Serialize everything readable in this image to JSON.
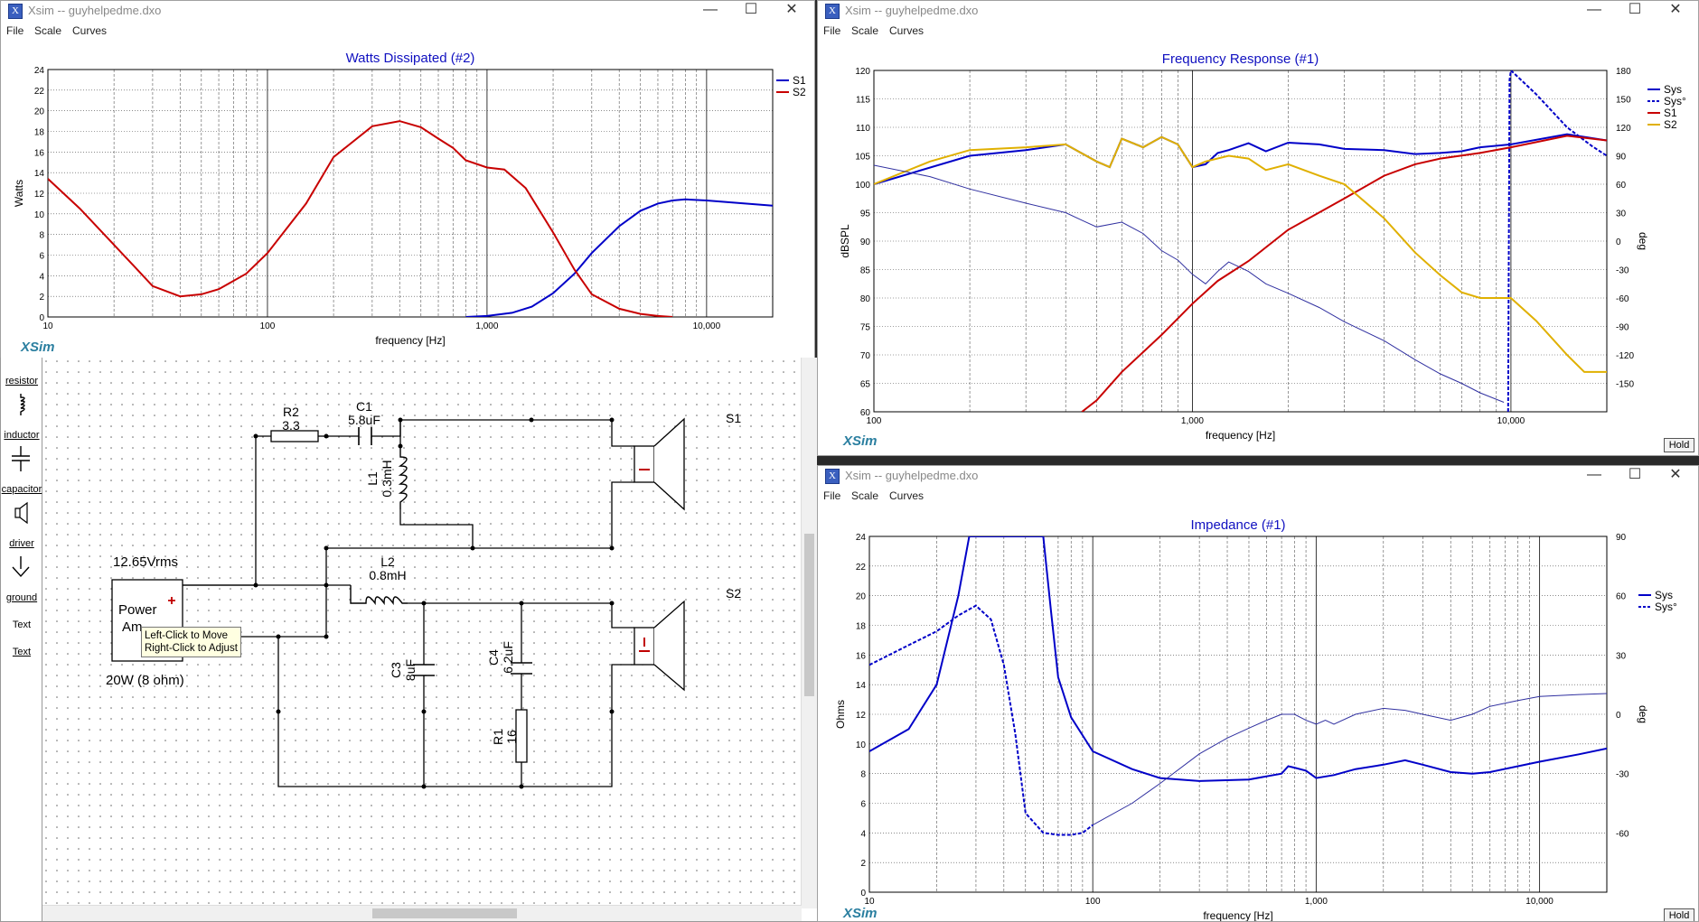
{
  "windows": {
    "watts": {
      "title": "Xsim -- guyhelpedme.dxo",
      "menu": [
        "File",
        "Scale",
        "Curves"
      ],
      "chart_title": "Watts Dissipated (#2)",
      "ylabel": "Watts",
      "xlabel": "frequency [Hz]",
      "logo": "XSim",
      "legend": [
        "S1",
        "S2"
      ]
    },
    "freq": {
      "title": "Xsim -- guyhelpedme.dxo",
      "menu": [
        "File",
        "Scale",
        "Curves"
      ],
      "chart_title": "Frequency Response (#1)",
      "ylabel": "dBSPL",
      "y2label": "deg",
      "xlabel": "frequency [Hz]",
      "logo": "XSim",
      "hold": "Hold",
      "legend": [
        "Sys",
        "Sys°",
        "S1",
        "S2"
      ]
    },
    "imp": {
      "title": "Xsim -- guyhelpedme.dxo",
      "menu": [
        "File",
        "Scale",
        "Curves"
      ],
      "chart_title": "Impedance (#1)",
      "ylabel": "Ohms",
      "y2label": "deg",
      "xlabel": "frequency [Hz]",
      "logo": "XSim",
      "hold": "Hold",
      "legend": [
        "Sys",
        "Sys°"
      ]
    }
  },
  "palette": [
    "resistor",
    "inductor",
    "capacitor",
    "driver",
    "ground",
    "Text",
    "Text"
  ],
  "schematic": {
    "R2_name": "R2",
    "R2_value": "3.3",
    "C1_name": "C1",
    "C1_value": "5.8uF",
    "L1_name": "L1",
    "L1_value": "0.3mH",
    "L2_name": "L2",
    "L2_value": "0.8mH",
    "C3_name": "C3",
    "C3_value": "8uF",
    "C4_name": "C4",
    "C4_value": "6.2uF",
    "R1_name": "R1",
    "R1_value": "16",
    "S1": "S1",
    "S2": "S2",
    "source_voltage": "12.65Vrms",
    "source_label_1": "Power",
    "source_label_2": "Am",
    "source_power": "20W (8 ohm)",
    "tooltip_line1": "Left-Click to Move",
    "tooltip_line2": "Right-Click to Adjust"
  },
  "chart_data": [
    {
      "type": "line",
      "title": "Watts Dissipated (#2)",
      "xlabel": "frequency [Hz]",
      "ylabel": "Watts",
      "xscale": "log",
      "xlim": [
        10,
        20000
      ],
      "ylim": [
        0,
        24
      ],
      "x_ticks": [
        "10",
        "100",
        "1,000",
        "10,000"
      ],
      "y_ticks": [
        0,
        2,
        4,
        6,
        8,
        10,
        12,
        14,
        16,
        18,
        20,
        22,
        24
      ],
      "legend_position": "right",
      "series": [
        {
          "name": "S1",
          "color": "#0000c8",
          "x": [
            800,
            1000,
            1300,
            1600,
            2000,
            2500,
            3000,
            4000,
            5000,
            6000,
            7000,
            8000,
            10000,
            15000,
            20000
          ],
          "y": [
            0,
            0.1,
            0.4,
            1.0,
            2.3,
            4.2,
            6.2,
            8.8,
            10.3,
            11.0,
            11.3,
            11.4,
            11.3,
            11.0,
            10.8
          ]
        },
        {
          "name": "S2",
          "color": "#c80000",
          "x": [
            10,
            14,
            20,
            25,
            30,
            40,
            50,
            60,
            80,
            100,
            150,
            200,
            300,
            400,
            500,
            600,
            700,
            800,
            1000,
            1200,
            1500,
            2000,
            2500,
            3000,
            4000,
            5000,
            6000,
            7000
          ],
          "y": [
            13.4,
            10.5,
            7.0,
            4.8,
            3.0,
            2.0,
            2.2,
            2.7,
            4.2,
            6.2,
            11.0,
            15.5,
            18.5,
            19.0,
            18.4,
            17.3,
            16.4,
            15.2,
            14.5,
            14.3,
            12.5,
            8.2,
            4.6,
            2.2,
            0.8,
            0.3,
            0.1,
            0
          ]
        }
      ]
    },
    {
      "type": "line",
      "title": "Frequency Response (#1)",
      "xlabel": "frequency [Hz]",
      "ylabel": "dBSPL",
      "y2label": "deg",
      "xscale": "log",
      "xlim": [
        100,
        20000
      ],
      "ylim": [
        60,
        120
      ],
      "y2lim": [
        -180,
        180
      ],
      "x_ticks": [
        "100",
        "1,000",
        "10,000"
      ],
      "y_ticks": [
        60,
        65,
        70,
        75,
        80,
        85,
        90,
        95,
        100,
        105,
        110,
        115,
        120
      ],
      "y2_ticks": [
        -150,
        -120,
        -90,
        -60,
        -30,
        0,
        30,
        60,
        90,
        120,
        150,
        180
      ],
      "legend_position": "right",
      "series": [
        {
          "name": "Sys",
          "color": "#0000c8",
          "axis": "left",
          "x": [
            100,
            200,
            300,
            400,
            500,
            550,
            600,
            700,
            800,
            900,
            1000,
            1100,
            1200,
            1300,
            1500,
            1700,
            2000,
            2500,
            3000,
            4000,
            5000,
            6000,
            7000,
            8000,
            10000,
            15000,
            20000
          ],
          "y": [
            100,
            105,
            106,
            107,
            104,
            103,
            108,
            106.5,
            108.3,
            107,
            103,
            103.5,
            105.5,
            106,
            107.2,
            105.8,
            107.3,
            107,
            106.2,
            106,
            105.3,
            105.5,
            105.8,
            106.5,
            107,
            108.8,
            107.7
          ]
        },
        {
          "name": "Sys°",
          "color": "#0000c8",
          "axis": "right",
          "dashed": true,
          "x": [
            9800,
            9850,
            9900,
            10000,
            12000,
            15000,
            18000,
            20000
          ],
          "y": [
            -180,
            0,
            170,
            180,
            155,
            120,
            100,
            90
          ]
        },
        {
          "name": "S1",
          "color": "#c80000",
          "axis": "left",
          "x": [
            450,
            500,
            600,
            800,
            1000,
            1200,
            1500,
            2000,
            3000,
            4000,
            5000,
            6000,
            8000,
            10000,
            15000,
            20000
          ],
          "y": [
            60,
            62,
            67,
            73.5,
            79,
            83,
            86.5,
            92,
            97.5,
            101.5,
            103.5,
            104.5,
            105.5,
            106.5,
            108.5,
            107.7
          ]
        },
        {
          "name": "S2",
          "color": "#e0b000",
          "axis": "left",
          "x": [
            100,
            150,
            200,
            300,
            400,
            500,
            550,
            600,
            700,
            800,
            900,
            1000,
            1100,
            1300,
            1500,
            1700,
            2000,
            2500,
            3000,
            4000,
            5000,
            6000,
            7000,
            8000,
            9000,
            10000,
            12000,
            15000,
            17000,
            20000
          ],
          "y": [
            100,
            104,
            106,
            106.5,
            107,
            104,
            103,
            108,
            106.5,
            108.3,
            107,
            103,
            104,
            105,
            104.5,
            102.5,
            103.5,
            101.5,
            100,
            94,
            88,
            84,
            81,
            80,
            80,
            80,
            76,
            70,
            67,
            67
          ]
        },
        {
          "name": "",
          "color": "#3030a0",
          "axis": "right",
          "thin": true,
          "x": [
            100,
            150,
            200,
            300,
            400,
            450,
            500,
            600,
            700,
            800,
            900,
            1000,
            1100,
            1200,
            1300,
            1500,
            1700,
            2000,
            2500,
            3000,
            4000,
            5000,
            6000,
            7000,
            8000,
            9500
          ],
          "y": [
            80,
            68,
            55,
            40,
            30,
            22,
            15,
            20,
            8,
            -10,
            -20,
            -35,
            -45,
            -32,
            -22,
            -32,
            -45,
            -55,
            -70,
            -85,
            -105,
            -125,
            -140,
            -150,
            -160,
            -170
          ]
        }
      ]
    },
    {
      "type": "line",
      "title": "Impedance (#1)",
      "xlabel": "frequency [Hz]",
      "ylabel": "Ohms",
      "y2label": "deg",
      "xscale": "log",
      "xlim": [
        10,
        20000
      ],
      "ylim": [
        0,
        24
      ],
      "y2lim": [
        -90,
        90
      ],
      "x_ticks": [
        "10",
        "100",
        "1,000",
        "10,000"
      ],
      "y_ticks": [
        0,
        2,
        4,
        6,
        8,
        10,
        12,
        14,
        16,
        18,
        20,
        22,
        24
      ],
      "y2_ticks": [
        -60,
        -30,
        0,
        30,
        60,
        90
      ],
      "legend_position": "right",
      "series": [
        {
          "name": "Sys",
          "color": "#0000c8",
          "axis": "left",
          "x": [
            10,
            15,
            20,
            25,
            28,
            29,
            60,
            65,
            70,
            80,
            100,
            150,
            200,
            300,
            500,
            700,
            750,
            800,
            900,
            1000,
            1200,
            1500,
            2000,
            2500,
            3000,
            4000,
            5000,
            6000,
            8000,
            10000,
            15000,
            20000
          ],
          "y": [
            9.5,
            11.0,
            14.0,
            20.0,
            24.0,
            24.0,
            24.0,
            19.0,
            14.5,
            11.8,
            9.5,
            8.3,
            7.7,
            7.5,
            7.6,
            8.0,
            8.5,
            8.4,
            8.2,
            7.7,
            7.9,
            8.3,
            8.6,
            8.9,
            8.6,
            8.1,
            8.0,
            8.1,
            8.5,
            8.8,
            9.3,
            9.7
          ]
        },
        {
          "name": "Sys°",
          "color": "#0000c8",
          "axis": "right",
          "dashed": true,
          "x": [
            10,
            15,
            20,
            25,
            30,
            32,
            35,
            40,
            45,
            50,
            60,
            70,
            80,
            90,
            100
          ],
          "y": [
            25,
            35,
            42,
            50,
            55,
            52,
            48,
            25,
            -10,
            -50,
            -60,
            -61,
            -61,
            -60,
            -56
          ]
        },
        {
          "name": "",
          "color": "#3030a0",
          "axis": "right",
          "thin": true,
          "x": [
            100,
            150,
            200,
            300,
            400,
            500,
            600,
            700,
            800,
            900,
            1000,
            1100,
            1200,
            1500,
            2000,
            2500,
            3000,
            4000,
            5000,
            6000,
            8000,
            10000,
            15000,
            20000
          ],
          "y": [
            -56,
            -45,
            -35,
            -20,
            -12,
            -7,
            -3,
            0,
            0,
            -3,
            -5,
            -3,
            -5,
            0,
            3,
            2,
            0,
            -3,
            0,
            4,
            7,
            9,
            10,
            10.5
          ]
        }
      ]
    }
  ]
}
